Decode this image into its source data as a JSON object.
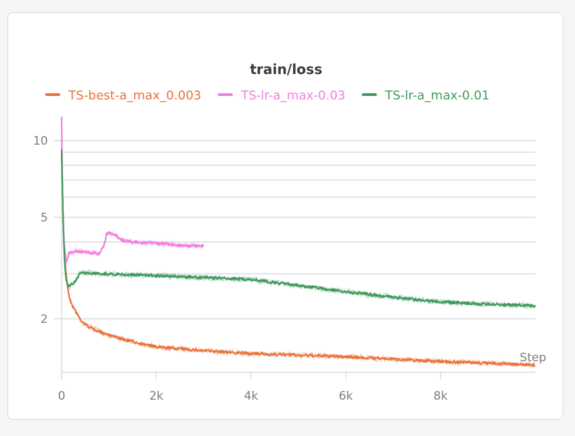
{
  "chart_data": {
    "type": "line",
    "title": "train/loss",
    "xlabel": "Step",
    "ylabel": "",
    "yscale": "log",
    "xlim": [
      0,
      10000
    ],
    "ylim": [
      1.23,
      12.5
    ],
    "grid": true,
    "legend_position": "top",
    "x_ticks": [
      {
        "v": 0,
        "label": "0"
      },
      {
        "v": 2000,
        "label": "2k"
      },
      {
        "v": 4000,
        "label": "4k"
      },
      {
        "v": 6000,
        "label": "6k"
      },
      {
        "v": 8000,
        "label": "8k"
      }
    ],
    "y_ticks": [
      {
        "v": 10,
        "label": "10"
      },
      {
        "v": 5,
        "label": "5"
      },
      {
        "v": 2,
        "label": "2"
      }
    ],
    "y_minor_grid": [
      9,
      8,
      7,
      6,
      4,
      3
    ],
    "series": [
      {
        "name": "TS-best-a_max_0.003",
        "color": "#e8743b",
        "x": [
          0,
          30,
          60,
          100,
          150,
          200,
          300,
          430,
          600,
          870,
          1300,
          2000,
          3000,
          4000,
          5000,
          6000,
          7000,
          8000,
          9000,
          10000
        ],
        "y": [
          9.0,
          5.0,
          3.6,
          2.9,
          2.5,
          2.3,
          2.13,
          1.94,
          1.85,
          1.76,
          1.66,
          1.55,
          1.5,
          1.46,
          1.44,
          1.42,
          1.39,
          1.36,
          1.34,
          1.32
        ]
      },
      {
        "name": "TS-lr-a_max-0.03",
        "color": "#ef7fe0",
        "x": [
          0,
          20,
          50,
          100,
          150,
          300,
          500,
          800,
          900,
          950,
          1000,
          1100,
          1300,
          1500,
          2000,
          2500,
          3000
        ],
        "y": [
          12.3,
          6.0,
          4.0,
          3.3,
          3.6,
          3.7,
          3.65,
          3.6,
          3.9,
          4.3,
          4.35,
          4.3,
          4.05,
          4.0,
          3.95,
          3.88,
          3.85
        ]
      },
      {
        "name": "TS-lr-a_max-0.01",
        "color": "#3f9a5c",
        "x": [
          0,
          30,
          60,
          100,
          150,
          250,
          400,
          1000,
          2000,
          3000,
          4000,
          5000,
          6000,
          7000,
          8000,
          9000,
          10000
        ],
        "y": [
          9.2,
          5.0,
          3.4,
          2.8,
          2.68,
          2.75,
          3.03,
          3.0,
          2.95,
          2.9,
          2.85,
          2.7,
          2.55,
          2.43,
          2.33,
          2.28,
          2.25
        ]
      }
    ]
  }
}
